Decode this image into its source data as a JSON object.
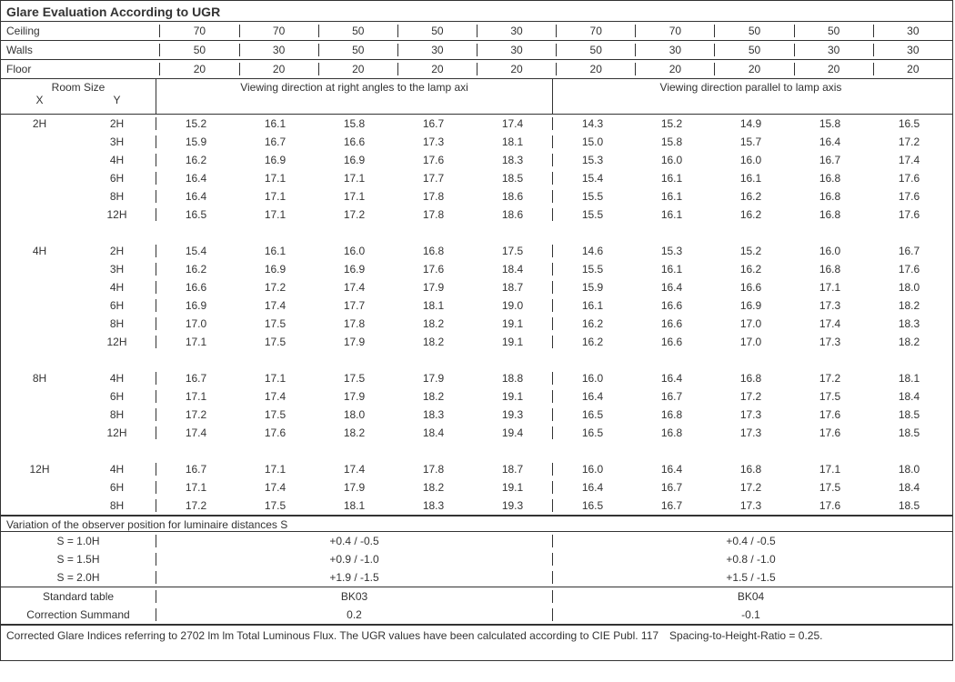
{
  "title": "Glare Evaluation According to UGR",
  "reflectance": {
    "labels": [
      "Ceiling",
      "Walls",
      "Floor"
    ],
    "ceiling": [
      "70",
      "70",
      "50",
      "50",
      "30",
      "70",
      "70",
      "50",
      "50",
      "30"
    ],
    "walls": [
      "50",
      "30",
      "50",
      "30",
      "30",
      "50",
      "30",
      "50",
      "30",
      "30"
    ],
    "floor": [
      "20",
      "20",
      "20",
      "20",
      "20",
      "20",
      "20",
      "20",
      "20",
      "20"
    ]
  },
  "room_size_label": "Room Size",
  "x_label": "X",
  "y_label": "Y",
  "dir1": "Viewing direction at right angles to the lamp axi",
  "dir2": "Viewing direction parallel to lamp axis",
  "groups": [
    {
      "x": "2H",
      "rows": [
        {
          "y": "2H",
          "v": [
            "15.2",
            "16.1",
            "15.8",
            "16.7",
            "17.4",
            "14.3",
            "15.2",
            "14.9",
            "15.8",
            "16.5"
          ]
        },
        {
          "y": "3H",
          "v": [
            "15.9",
            "16.7",
            "16.6",
            "17.3",
            "18.1",
            "15.0",
            "15.8",
            "15.7",
            "16.4",
            "17.2"
          ]
        },
        {
          "y": "4H",
          "v": [
            "16.2",
            "16.9",
            "16.9",
            "17.6",
            "18.3",
            "15.3",
            "16.0",
            "16.0",
            "16.7",
            "17.4"
          ]
        },
        {
          "y": "6H",
          "v": [
            "16.4",
            "17.1",
            "17.1",
            "17.7",
            "18.5",
            "15.4",
            "16.1",
            "16.1",
            "16.8",
            "17.6"
          ]
        },
        {
          "y": "8H",
          "v": [
            "16.4",
            "17.1",
            "17.1",
            "17.8",
            "18.6",
            "15.5",
            "16.1",
            "16.2",
            "16.8",
            "17.6"
          ]
        },
        {
          "y": "12H",
          "v": [
            "16.5",
            "17.1",
            "17.2",
            "17.8",
            "18.6",
            "15.5",
            "16.1",
            "16.2",
            "16.8",
            "17.6"
          ]
        }
      ]
    },
    {
      "x": "4H",
      "rows": [
        {
          "y": "2H",
          "v": [
            "15.4",
            "16.1",
            "16.0",
            "16.8",
            "17.5",
            "14.6",
            "15.3",
            "15.2",
            "16.0",
            "16.7"
          ]
        },
        {
          "y": "3H",
          "v": [
            "16.2",
            "16.9",
            "16.9",
            "17.6",
            "18.4",
            "15.5",
            "16.1",
            "16.2",
            "16.8",
            "17.6"
          ]
        },
        {
          "y": "4H",
          "v": [
            "16.6",
            "17.2",
            "17.4",
            "17.9",
            "18.7",
            "15.9",
            "16.4",
            "16.6",
            "17.1",
            "18.0"
          ]
        },
        {
          "y": "6H",
          "v": [
            "16.9",
            "17.4",
            "17.7",
            "18.1",
            "19.0",
            "16.1",
            "16.6",
            "16.9",
            "17.3",
            "18.2"
          ]
        },
        {
          "y": "8H",
          "v": [
            "17.0",
            "17.5",
            "17.8",
            "18.2",
            "19.1",
            "16.2",
            "16.6",
            "17.0",
            "17.4",
            "18.3"
          ]
        },
        {
          "y": "12H",
          "v": [
            "17.1",
            "17.5",
            "17.9",
            "18.2",
            "19.1",
            "16.2",
            "16.6",
            "17.0",
            "17.3",
            "18.2"
          ]
        }
      ]
    },
    {
      "x": "8H",
      "rows": [
        {
          "y": "4H",
          "v": [
            "16.7",
            "17.1",
            "17.5",
            "17.9",
            "18.8",
            "16.0",
            "16.4",
            "16.8",
            "17.2",
            "18.1"
          ]
        },
        {
          "y": "6H",
          "v": [
            "17.1",
            "17.4",
            "17.9",
            "18.2",
            "19.1",
            "16.4",
            "16.7",
            "17.2",
            "17.5",
            "18.4"
          ]
        },
        {
          "y": "8H",
          "v": [
            "17.2",
            "17.5",
            "18.0",
            "18.3",
            "19.3",
            "16.5",
            "16.8",
            "17.3",
            "17.6",
            "18.5"
          ]
        },
        {
          "y": "12H",
          "v": [
            "17.4",
            "17.6",
            "18.2",
            "18.4",
            "19.4",
            "16.5",
            "16.8",
            "17.3",
            "17.6",
            "18.5"
          ]
        }
      ]
    },
    {
      "x": "12H",
      "rows": [
        {
          "y": "4H",
          "v": [
            "16.7",
            "17.1",
            "17.4",
            "17.8",
            "18.7",
            "16.0",
            "16.4",
            "16.8",
            "17.1",
            "18.0"
          ]
        },
        {
          "y": "6H",
          "v": [
            "17.1",
            "17.4",
            "17.9",
            "18.2",
            "19.1",
            "16.4",
            "16.7",
            "17.2",
            "17.5",
            "18.4"
          ]
        },
        {
          "y": "8H",
          "v": [
            "17.2",
            "17.5",
            "18.1",
            "18.3",
            "19.3",
            "16.5",
            "16.7",
            "17.3",
            "17.6",
            "18.5"
          ]
        }
      ]
    }
  ],
  "variation_title": "Variation of the observer position for luminaire distances S",
  "variation_rows": [
    {
      "label": "S = 1.0H",
      "left": "+0.4 / -0.5",
      "right": "+0.4 / -0.5"
    },
    {
      "label": "S = 1.5H",
      "left": "+0.9 / -1.0",
      "right": "+0.8 / -1.0"
    },
    {
      "label": "S = 2.0H",
      "left": "+1.9 / -1.5",
      "right": "+1.5 / -1.5"
    }
  ],
  "std_label": "Standard table",
  "std_left": "BK03",
  "std_right": "BK04",
  "corr_label": "Correction Summand",
  "corr_left": "0.2",
  "corr_right": "-0.1",
  "footer": "Corrected Glare Indices referring to 2702 lm lm Total Luminous Flux. The UGR values have been calculated according to CIE Publ. 117 Spacing-to-Height-Ratio = 0.25."
}
